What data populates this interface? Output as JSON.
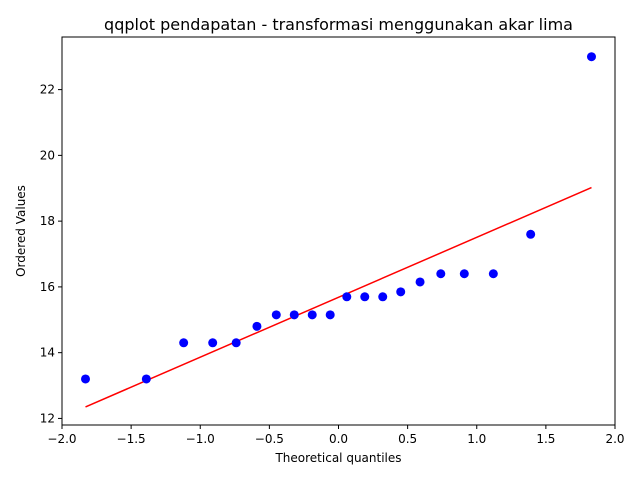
{
  "chart_data": {
    "type": "scatter",
    "title": "qqplot pendapatan - transformasi menggunakan akar lima",
    "xlabel": "Theoretical quantiles",
    "ylabel": "Ordered Values",
    "xlim": [
      -2.0,
      2.0
    ],
    "ylim": [
      11.8,
      23.6
    ],
    "xticks": [
      -2.0,
      -1.5,
      -1.0,
      -0.5,
      0.0,
      0.5,
      1.0,
      1.5,
      2.0
    ],
    "xtick_labels": [
      "−2.0",
      "−1.5",
      "−1.0",
      "−0.5",
      "0.0",
      "0.5",
      "1.0",
      "1.5",
      "2.0"
    ],
    "yticks": [
      12,
      14,
      16,
      18,
      20,
      22
    ],
    "ytick_labels": [
      "12",
      "14",
      "16",
      "18",
      "20",
      "22"
    ],
    "grid": false,
    "points": {
      "color": "#0000ff",
      "x": [
        -1.83,
        -1.39,
        -1.12,
        -0.91,
        -0.74,
        -0.59,
        -0.45,
        -0.32,
        -0.19,
        -0.06,
        0.06,
        0.19,
        0.32,
        0.45,
        0.59,
        0.74,
        0.91,
        1.12,
        1.39,
        1.83
      ],
      "y": [
        13.2,
        13.2,
        14.3,
        14.3,
        14.3,
        14.8,
        15.15,
        15.15,
        15.15,
        15.15,
        15.7,
        15.7,
        15.7,
        15.85,
        16.15,
        16.4,
        16.4,
        16.4,
        17.6,
        23.0
      ]
    },
    "fit_line": {
      "color": "#ff0000",
      "x": [
        -1.83,
        1.83
      ],
      "y": [
        12.35,
        19.02
      ]
    }
  }
}
